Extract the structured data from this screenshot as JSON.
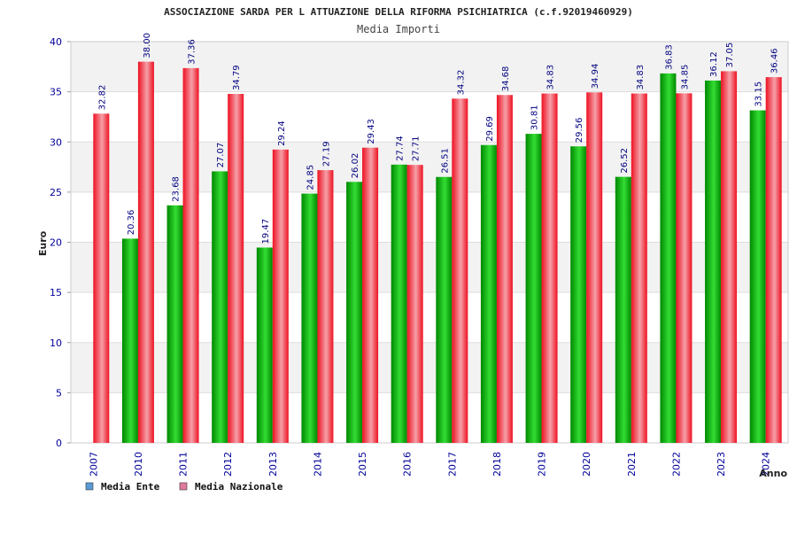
{
  "chart_data": {
    "type": "bar",
    "title": "ASSOCIAZIONE SARDA PER L ATTUAZIONE DELLA RIFORMA PSICHIATRICA (c.f.92019460929)",
    "subtitle": "Media Importi",
    "xlabel": "Anno",
    "ylabel": "Euro",
    "ylim": [
      0,
      40
    ],
    "yticks": [
      "0",
      "5",
      "10",
      "15",
      "20",
      "25",
      "30",
      "35",
      "40"
    ],
    "categories": [
      "2007",
      "2010",
      "2011",
      "2012",
      "2013",
      "2014",
      "2015",
      "2016",
      "2017",
      "2018",
      "2019",
      "2020",
      "2021",
      "2022",
      "2023",
      "2024"
    ],
    "series": [
      {
        "name": "Media Ente",
        "values": [
          null,
          20.36,
          23.68,
          27.07,
          19.47,
          24.85,
          26.02,
          27.74,
          26.51,
          29.69,
          30.81,
          29.56,
          26.52,
          36.83,
          36.12,
          33.15
        ],
        "labels": [
          "",
          "20.36",
          "23.68",
          "27.07",
          "19.47",
          "24.85",
          "26.02",
          "27.74",
          "26.51",
          "29.69",
          "30.81",
          "29.56",
          "26.52",
          "36.83",
          "36.12",
          "33.15"
        ]
      },
      {
        "name": "Media Nazionale",
        "values": [
          32.82,
          38.0,
          37.36,
          34.79,
          29.24,
          27.19,
          29.43,
          27.71,
          34.32,
          34.68,
          34.83,
          34.94,
          34.83,
          34.85,
          37.05,
          36.46
        ],
        "labels": [
          "32.82",
          "38.00",
          "37.36",
          "34.79",
          "29.24",
          "27.19",
          "29.43",
          "27.71",
          "34.32",
          "34.68",
          "34.83",
          "34.94",
          "34.83",
          "34.85",
          "37.05",
          "36.46"
        ]
      }
    ],
    "legend": [
      {
        "label": "Media Ente",
        "color": "#5b9bd5"
      },
      {
        "label": "Media Nazionale",
        "color": "#e07ba0"
      }
    ],
    "legend_position": "bottom-left",
    "grid": true,
    "colors": {
      "ente_dark": "#008800",
      "ente_light": "#33dd33",
      "nazionale_dark": "#ee1122",
      "nazionale_light": "#f5a0a8",
      "axis_text": "#000099",
      "grid": "#dddddd",
      "band": "#f2f2f2"
    }
  }
}
